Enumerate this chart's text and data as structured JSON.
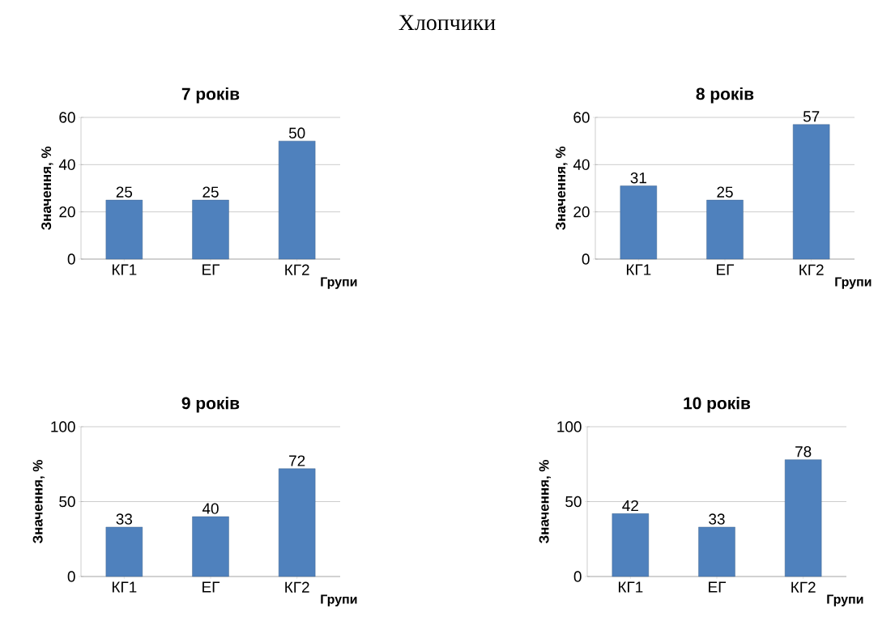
{
  "chart_data": [
    {
      "type": "bar",
      "title": "7 років",
      "annotations": [
        "Хлопчики"
      ],
      "xlabel": "Групи",
      "ylabel": "Значення, %",
      "categories": [
        "КГ1",
        "ЕГ",
        "КГ2"
      ],
      "values": [
        25,
        25,
        50
      ],
      "color": "#4f81bd",
      "ylim": [
        0,
        60
      ],
      "yticks": [
        0,
        20,
        40,
        60
      ],
      "grid": "y",
      "data_labels": true
    },
    {
      "type": "bar",
      "title": "8 років",
      "xlabel": "Групи",
      "ylabel": "Значення, %",
      "categories": [
        "КГ1",
        "ЕГ",
        "КГ2"
      ],
      "values": [
        31,
        25,
        57
      ],
      "color": "#4f81bd",
      "ylim": [
        0,
        60
      ],
      "yticks": [
        0,
        20,
        40,
        60
      ],
      "grid": "y",
      "data_labels": true
    },
    {
      "type": "bar",
      "title": "9 років",
      "xlabel": "Групи",
      "ylabel": "Значення, %",
      "categories": [
        "КГ1",
        "ЕГ",
        "КГ2"
      ],
      "values": [
        33,
        40,
        72
      ],
      "color": "#4f81bd",
      "ylim": [
        0,
        100
      ],
      "yticks": [
        0,
        50,
        100
      ],
      "grid": "y",
      "data_labels": true
    },
    {
      "type": "bar",
      "title": "10 років",
      "xlabel": "Групи",
      "ylabel": "Значення, %",
      "categories": [
        "КГ1",
        "ЕГ",
        "КГ2"
      ],
      "values": [
        42,
        33,
        78
      ],
      "color": "#4f81bd",
      "ylim": [
        0,
        100
      ],
      "yticks": [
        0,
        50,
        100
      ],
      "grid": "y",
      "data_labels": true
    }
  ]
}
